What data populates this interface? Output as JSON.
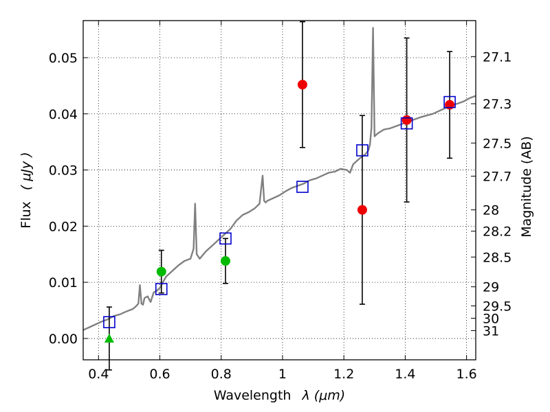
{
  "chart_data": {
    "type": "scatter",
    "xlabel_text": "Wavelength",
    "xlabel_math": "λ (μm)",
    "ylabel_text": "Flux",
    "ylabel_math": "( μJy )",
    "y2label": "Magnitude (AB)",
    "xlim": [
      0.35,
      1.63
    ],
    "ylim": [
      -0.0038,
      0.0566
    ],
    "grid": true,
    "x_ticks": [
      0.4,
      0.6,
      0.8,
      1.0,
      1.2,
      1.4,
      1.6
    ],
    "x_tick_labels": [
      "0.4",
      "0.6",
      "0.8",
      "1",
      "1.2",
      "1.4",
      "1.6"
    ],
    "y_ticks": [
      0.0,
      0.01,
      0.02,
      0.03,
      0.04,
      0.05
    ],
    "y_tick_labels": [
      "0.00",
      "0.01",
      "0.02",
      "0.03",
      "0.04",
      "0.05"
    ],
    "mag_ticks": [
      {
        "label": "27.1",
        "flux": 0.0502
      },
      {
        "label": "27.3",
        "flux": 0.0418
      },
      {
        "label": "27.5",
        "flux": 0.0348
      },
      {
        "label": "27.7",
        "flux": 0.0289
      },
      {
        "label": "28",
        "flux": 0.0229
      },
      {
        "label": "28.2",
        "flux": 0.0191
      },
      {
        "label": "28.5",
        "flux": 0.0145
      },
      {
        "label": "29",
        "flux": 0.0092
      },
      {
        "label": "29.5",
        "flux": 0.0058
      },
      {
        "label": "30",
        "flux": 0.0036
      },
      {
        "label": "31",
        "flux": 0.0014
      }
    ],
    "model_spectrum": {
      "color": "#808080",
      "x": [
        0.35,
        0.37,
        0.39,
        0.41,
        0.43,
        0.45,
        0.47,
        0.49,
        0.5,
        0.51,
        0.52,
        0.53,
        0.535,
        0.54,
        0.545,
        0.55,
        0.56,
        0.57,
        0.58,
        0.59,
        0.6,
        0.62,
        0.64,
        0.66,
        0.68,
        0.7,
        0.71,
        0.715,
        0.72,
        0.73,
        0.75,
        0.77,
        0.79,
        0.81,
        0.83,
        0.85,
        0.87,
        0.89,
        0.91,
        0.925,
        0.935,
        0.94,
        0.945,
        0.95,
        0.97,
        0.99,
        1.01,
        1.03,
        1.05,
        1.07,
        1.09,
        1.11,
        1.13,
        1.15,
        1.17,
        1.19,
        1.21,
        1.22,
        1.23,
        1.25,
        1.27,
        1.28,
        1.285,
        1.29,
        1.295,
        1.3,
        1.31,
        1.33,
        1.35,
        1.37,
        1.39,
        1.41,
        1.43,
        1.45,
        1.47,
        1.49,
        1.51,
        1.53,
        1.55,
        1.57,
        1.59,
        1.61,
        1.63
      ],
      "y": [
        0.0015,
        0.002,
        0.0025,
        0.003,
        0.0034,
        0.004,
        0.0043,
        0.0048,
        0.005,
        0.0052,
        0.0056,
        0.0062,
        0.0095,
        0.0062,
        0.006,
        0.0072,
        0.0075,
        0.0065,
        0.0082,
        0.0085,
        0.009,
        0.011,
        0.012,
        0.013,
        0.0138,
        0.0142,
        0.016,
        0.024,
        0.015,
        0.0142,
        0.0155,
        0.0165,
        0.0175,
        0.0185,
        0.0195,
        0.021,
        0.022,
        0.0225,
        0.0232,
        0.024,
        0.029,
        0.0245,
        0.0242,
        0.0245,
        0.025,
        0.0255,
        0.0262,
        0.0268,
        0.0272,
        0.0276,
        0.0282,
        0.0285,
        0.029,
        0.0295,
        0.0297,
        0.0302,
        0.03,
        0.0295,
        0.031,
        0.032,
        0.0328,
        0.0335,
        0.0345,
        0.0375,
        0.0553,
        0.036,
        0.0365,
        0.0372,
        0.0374,
        0.0378,
        0.0382,
        0.0386,
        0.039,
        0.0394,
        0.0397,
        0.04,
        0.0405,
        0.041,
        0.0415,
        0.0418,
        0.0422,
        0.0428,
        0.0432
      ]
    },
    "series": [
      {
        "marker": "square-open",
        "color": "#0000cc",
        "points": [
          {
            "x": 0.435,
            "y": 0.0029
          },
          {
            "x": 0.605,
            "y": 0.0088
          },
          {
            "x": 0.814,
            "y": 0.0178
          },
          {
            "x": 1.065,
            "y": 0.027
          },
          {
            "x": 1.26,
            "y": 0.0335
          },
          {
            "x": 1.405,
            "y": 0.0383
          },
          {
            "x": 1.545,
            "y": 0.0421
          }
        ]
      },
      {
        "marker": "circle",
        "color": "#00bb00",
        "points": [
          {
            "x": 0.435,
            "y": 0.0,
            "err": 0.0056,
            "marker": "triangle"
          },
          {
            "x": 0.605,
            "y": 0.0119,
            "err": 0.0038
          },
          {
            "x": 0.814,
            "y": 0.0138,
            "err": 0.004
          }
        ]
      },
      {
        "marker": "circle",
        "color": "#ee0000",
        "points": [
          {
            "x": 1.065,
            "y": 0.0452,
            "err": 0.0112
          },
          {
            "x": 1.26,
            "y": 0.0229,
            "err": 0.0168
          },
          {
            "x": 1.405,
            "y": 0.0389,
            "err": 0.0146
          },
          {
            "x": 1.545,
            "y": 0.0416,
            "err": 0.0095
          }
        ]
      }
    ]
  }
}
